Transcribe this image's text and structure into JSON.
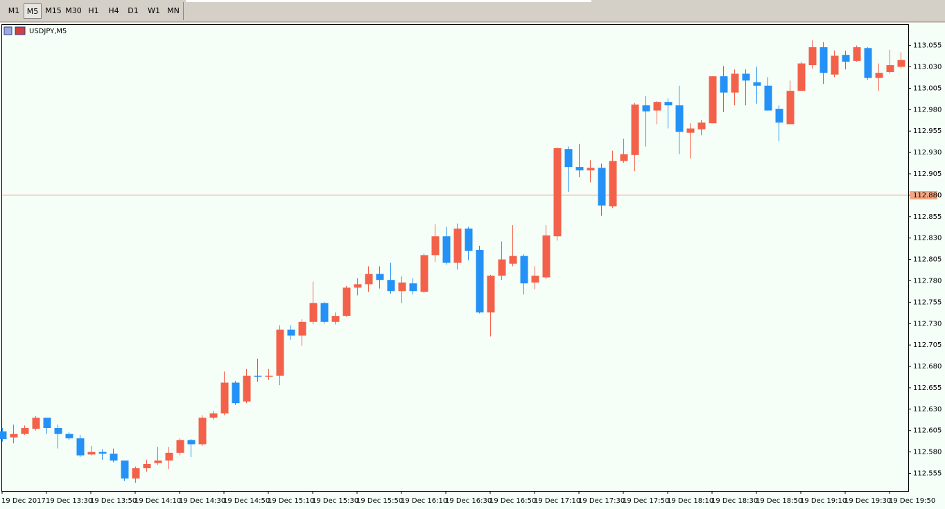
{
  "toolbar": {
    "buttons": [
      "M1",
      "M5",
      "M15",
      "M30",
      "H1",
      "H4",
      "D1",
      "W1",
      "MN"
    ],
    "selected": "M5"
  },
  "chart_data": {
    "type": "candlestick",
    "title": "USDJPY,M5",
    "up_color": "#f4614a",
    "down_color": "#2491f6",
    "categories": [
      "19 Dec 2017",
      null,
      null,
      null,
      "19 Dec 13:30",
      null,
      null,
      null,
      "19 Dec 13:50",
      null,
      null,
      null,
      "19 Dec 14:10",
      null,
      null,
      null,
      "19 Dec 14:30",
      null,
      null,
      null,
      "19 Dec 14:50",
      null,
      null,
      null,
      "19 Dec 15:10",
      null,
      null,
      null,
      "19 Dec 15:30",
      null,
      null,
      null,
      "19 Dec 15:50",
      null,
      null,
      null,
      "19 Dec 16:10",
      null,
      null,
      null,
      "19 Dec 16:30",
      null,
      null,
      null,
      "19 Dec 16:50",
      null,
      null,
      null,
      "19 Dec 17:10",
      null,
      null,
      null,
      "19 Dec 17:30",
      null,
      null,
      null,
      "19 Dec 17:50",
      null,
      null,
      null,
      "19 Dec 18:10",
      null,
      null,
      null,
      "19 Dec 18:30",
      null,
      null,
      null,
      "19 Dec 18:50",
      null,
      null,
      null,
      "19 Dec 19:10",
      null,
      null,
      null,
      "19 Dec 19:30",
      null,
      null,
      null,
      "19 Dec 19:50",
      null
    ],
    "open": [
      112.604,
      112.597,
      112.601,
      112.607,
      112.62,
      112.608,
      112.601,
      112.596,
      112.577,
      112.58,
      112.578,
      112.57,
      112.549,
      112.561,
      112.567,
      112.57,
      112.579,
      112.594,
      112.589,
      112.62,
      112.625,
      112.661,
      112.639,
      112.669,
      112.668,
      112.669,
      112.723,
      112.716,
      112.732,
      112.754,
      112.732,
      112.739,
      112.772,
      112.776,
      112.788,
      112.781,
      112.768,
      112.777,
      112.767,
      112.81,
      112.832,
      112.801,
      112.841,
      112.816,
      112.743,
      112.786,
      112.8,
      112.809,
      112.778,
      112.784,
      112.832,
      112.934,
      112.913,
      112.909,
      112.912,
      112.867,
      112.92,
      112.927,
      112.985,
      112.979,
      112.989,
      112.985,
      112.953,
      112.957,
      112.964,
      113.019,
      113.0,
      113.022,
      113.012,
      113.008,
      112.981,
      112.963,
      113.002,
      113.032,
      113.053,
      113.021,
      113.044,
      113.037,
      113.052,
      113.017,
      113.024,
      113.03
    ],
    "high": [
      112.608,
      112.612,
      112.611,
      112.622,
      112.62,
      112.612,
      112.603,
      112.6,
      112.587,
      112.583,
      112.584,
      112.57,
      112.563,
      112.571,
      112.586,
      112.586,
      112.596,
      112.595,
      112.623,
      112.628,
      112.674,
      112.663,
      112.677,
      112.689,
      112.677,
      112.728,
      112.728,
      112.735,
      112.779,
      112.755,
      112.743,
      112.774,
      112.783,
      112.797,
      112.797,
      112.801,
      112.785,
      112.783,
      112.812,
      112.846,
      112.843,
      112.847,
      112.843,
      112.821,
      112.787,
      112.826,
      112.845,
      112.811,
      112.797,
      112.845,
      112.936,
      112.937,
      112.94,
      112.921,
      112.917,
      112.932,
      112.946,
      112.988,
      112.996,
      112.99,
      112.993,
      113.008,
      112.964,
      112.968,
      113.019,
      113.031,
      113.027,
      113.027,
      113.03,
      113.018,
      112.985,
      113.014,
      113.036,
      113.061,
      113.059,
      113.049,
      113.049,
      113.055,
      113.053,
      113.034,
      113.05,
      113.047
    ],
    "low": [
      112.592,
      112.59,
      112.6,
      112.605,
      112.601,
      112.584,
      112.594,
      112.574,
      112.576,
      112.571,
      112.568,
      112.546,
      112.544,
      112.557,
      112.565,
      112.56,
      112.576,
      112.574,
      112.587,
      112.618,
      112.623,
      112.635,
      112.637,
      112.662,
      112.664,
      112.658,
      112.711,
      112.704,
      112.729,
      112.73,
      112.729,
      112.738,
      112.763,
      112.767,
      112.771,
      112.765,
      112.754,
      112.764,
      112.766,
      112.802,
      112.799,
      112.793,
      112.804,
      112.742,
      112.715,
      112.781,
      112.797,
      112.764,
      112.77,
      112.782,
      112.827,
      112.884,
      112.901,
      112.895,
      112.856,
      112.865,
      112.918,
      112.908,
      112.937,
      112.963,
      112.958,
      112.928,
      112.923,
      112.95,
      112.964,
      112.977,
      112.985,
      112.985,
      112.987,
      112.979,
      112.943,
      112.963,
      113.002,
      113.028,
      113.01,
      113.018,
      113.027,
      113.036,
      113.015,
      113.002,
      113.022,
      113.028
    ],
    "close": [
      112.595,
      112.601,
      112.608,
      112.62,
      112.608,
      112.601,
      112.596,
      112.576,
      112.58,
      112.578,
      112.57,
      112.549,
      112.561,
      112.566,
      112.57,
      112.579,
      112.594,
      112.589,
      112.62,
      112.625,
      112.661,
      112.637,
      112.669,
      112.668,
      112.669,
      112.723,
      112.716,
      112.732,
      112.754,
      112.732,
      112.739,
      112.772,
      112.776,
      112.788,
      112.781,
      112.768,
      112.778,
      112.768,
      112.81,
      112.832,
      112.801,
      112.841,
      112.815,
      112.743,
      112.786,
      112.805,
      112.809,
      112.777,
      112.786,
      112.833,
      112.935,
      112.913,
      112.909,
      112.912,
      112.868,
      112.92,
      112.928,
      112.986,
      112.978,
      112.989,
      112.985,
      112.954,
      112.958,
      112.965,
      113.019,
      113.0,
      113.022,
      113.014,
      113.008,
      112.979,
      112.965,
      113.002,
      113.034,
      113.053,
      113.023,
      113.043,
      113.036,
      113.053,
      113.017,
      113.023,
      113.032,
      113.038
    ],
    "ylim": [
      112.536,
      113.079
    ],
    "yticks": [
      113.055,
      {
        "value": 113.03,
        "label": "113.030"
      },
      113.005,
      {
        "value": 112.98,
        "label": "112.980"
      },
      112.955,
      {
        "value": 112.93,
        "label": "112.930"
      },
      112.905,
      {
        "value": 112.88,
        "label": "112.880"
      },
      112.855,
      {
        "value": 112.83,
        "label": "112.830"
      },
      112.805,
      {
        "value": 112.78,
        "label": "112.780"
      },
      112.755,
      {
        "value": 112.73,
        "label": "112.730"
      },
      112.705,
      {
        "value": 112.68,
        "label": "112.680"
      },
      112.655,
      {
        "value": 112.63,
        "label": "112.630"
      },
      112.605,
      {
        "value": 112.58,
        "label": "112.580"
      },
      112.555
    ],
    "price_line": {
      "value": 112.88,
      "label": "112.880",
      "color": "#f4a582"
    },
    "grid": false
  }
}
